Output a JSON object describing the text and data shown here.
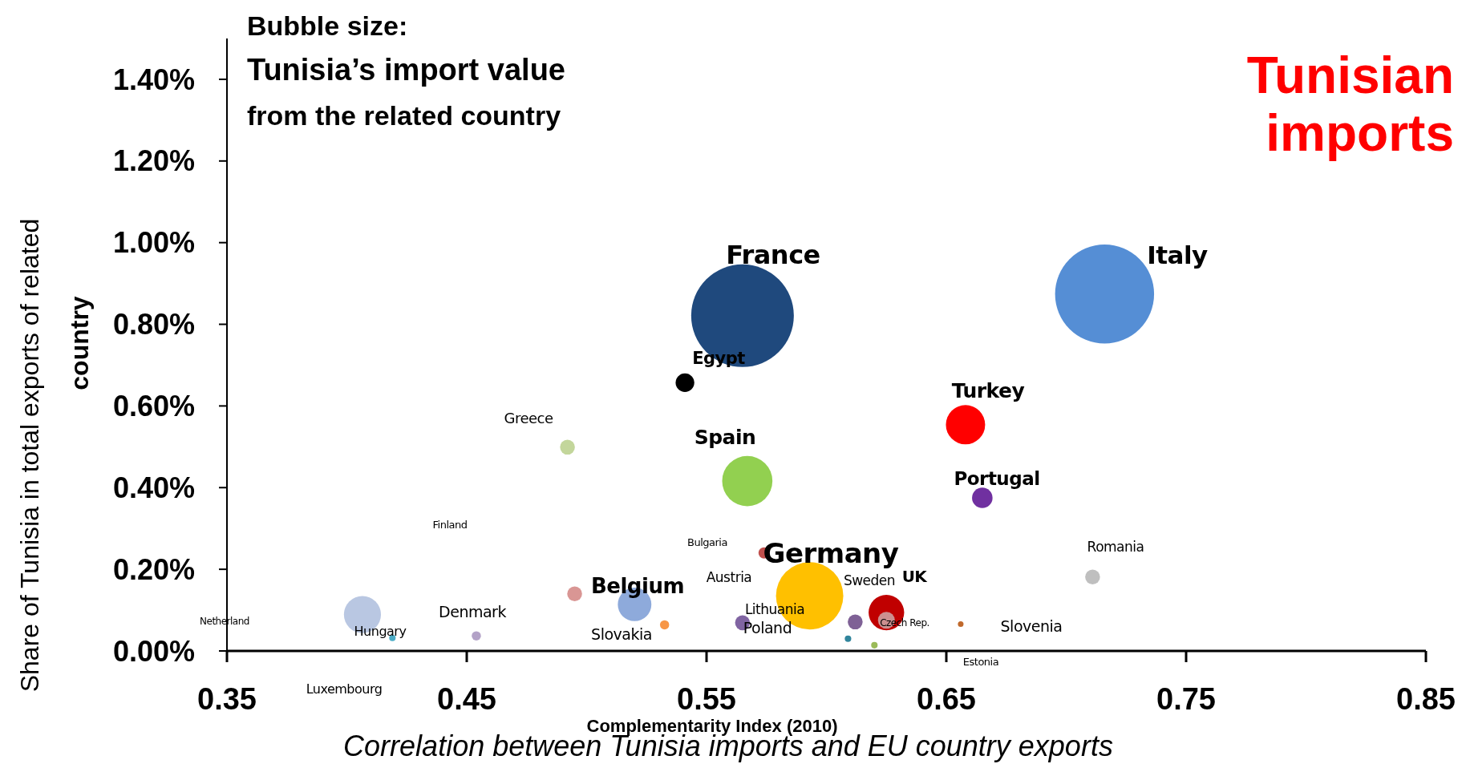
{
  "chart_data": {
    "type": "bubble",
    "title": "Tunisian\nimports",
    "xlabel": "Complementarity Index (2010)",
    "ylabel": "Share of Tunisia in total exports of related\ncountry",
    "xlim": [
      0.35,
      0.85
    ],
    "xticks": [
      0.35,
      0.45,
      0.55,
      0.65,
      0.75,
      0.85
    ],
    "ylim": [
      0,
      1.5
    ],
    "yticks": [
      {
        "value": 0,
        "label": "0.00%"
      },
      {
        "value": 0.2,
        "label": "0.20%"
      },
      {
        "value": 0.4,
        "label": "0.40%"
      },
      {
        "value": 0.6,
        "label": "0.60%"
      },
      {
        "value": 0.8,
        "label": "0.80%"
      },
      {
        "value": 1.0,
        "label": "1.00%"
      },
      {
        "value": 1.2,
        "label": "1.20%"
      },
      {
        "value": 1.4,
        "label": "1.40%"
      }
    ],
    "x": [
      0.565,
      0.716,
      0.541,
      0.492,
      0.567,
      0.658,
      0.665,
      0.574,
      0.495,
      0.52,
      0.4065,
      0.419,
      0.454,
      0.5325,
      0.565,
      0.593,
      0.612,
      0.609,
      0.62,
      0.625,
      0.625,
      0.656,
      0.711
    ],
    "values": [
      0.821,
      0.874,
      0.657,
      0.499,
      0.416,
      0.554,
      0.375,
      0.24,
      0.14,
      0.114,
      0.089,
      0.032,
      0.037,
      0.064,
      0.069,
      0.135,
      0.071,
      0.03,
      0.014,
      0.094,
      0.075,
      0.066,
      0.181
    ],
    "sizes": [
      1,
      0.93,
      0.033,
      0.021,
      0.24,
      0.146,
      0.04,
      0.012,
      0.021,
      0.107,
      0.13,
      0.004,
      0.008,
      0.008,
      0.021,
      0.43,
      0.021,
      0.004,
      0.004,
      0.12,
      0.027,
      0.003,
      0.021
    ],
    "colors": [
      "#1f497d",
      "#558ed5",
      "#000000",
      "#c3d69b",
      "#92d050",
      "#ff0000",
      "#7030a0",
      "#c0504d",
      "#d99694",
      "#8eaadb",
      "#b9c7e2",
      "#4bacc6",
      "#b3a2c7",
      "#f79646",
      "#8064a2",
      "#ffc000",
      "#7f6196",
      "#31859c",
      "#9bbb59",
      "#c00000",
      "#cc8f8f",
      "#c0692c",
      "#bfbfbf"
    ],
    "annotations": [
      "Bubble size:\nTunisia’s import value\nfrom the related country",
      "Correlation between Tunisia imports and EU country exports",
      "France",
      "Italy",
      "Egypt",
      "Greece",
      "Spain",
      "Turkey",
      "Portugal",
      "Finland",
      "Bulgaria",
      "Romania",
      "Germany",
      "Austria",
      "Belgium",
      "Sweden",
      "UK",
      "Denmark",
      "Lithuania",
      "Netherland",
      "Hungary",
      "Slovakia",
      "Poland",
      "Czech Rep.",
      "Slovenia",
      "Estonia",
      "Luxembourg"
    ]
  }
}
